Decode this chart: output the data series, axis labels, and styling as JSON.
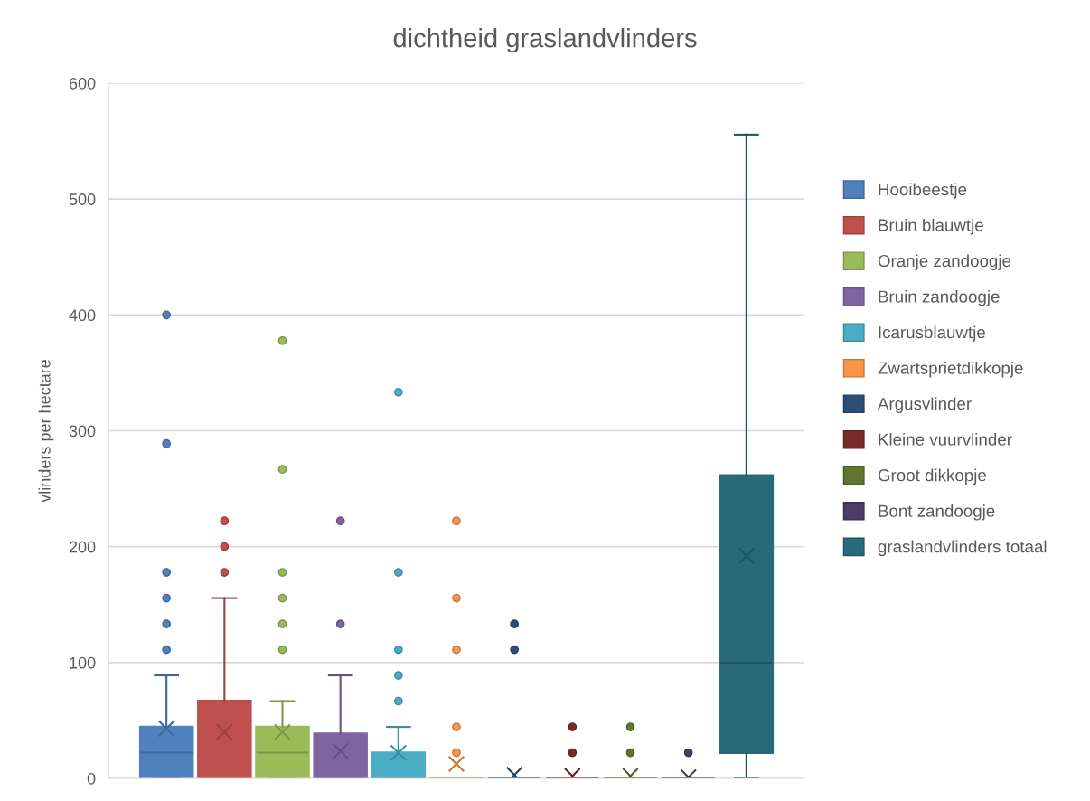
{
  "chart_data": {
    "type": "box",
    "title": "dichtheid graslandvlinders",
    "ylabel": "vlinders per hectare",
    "categories": [
      null
    ],
    "ylim": [
      0,
      600
    ],
    "yticks": [
      0,
      100,
      200,
      300,
      400,
      500,
      600
    ],
    "grid": "y",
    "legend": "right",
    "series": [
      {
        "name": "Hooibeestje",
        "color": "#4f81bd",
        "boxes": [
          {
            "low": 0,
            "q1": 0,
            "median": 22.2,
            "q3": 44.4,
            "high": 88.9,
            "mean": 43,
            "outliers": [
              111.1,
              133.3,
              155.6,
              177.8,
              288.9,
              400
            ]
          }
        ]
      },
      {
        "name": "Bruin blauwtje",
        "color": "#c0504d",
        "boxes": [
          {
            "low": 0,
            "q1": 0,
            "median": 0,
            "q3": 66.7,
            "high": 155.6,
            "mean": 40,
            "outliers": [
              177.8,
              200,
              222.2
            ]
          }
        ]
      },
      {
        "name": "Oranje zandoogje",
        "color": "#9bbb59",
        "boxes": [
          {
            "low": 0,
            "q1": 0,
            "median": 22.2,
            "q3": 44.4,
            "high": 66.7,
            "mean": 40,
            "outliers": [
              111.1,
              133.3,
              155.6,
              177.8,
              266.7,
              377.8
            ]
          }
        ]
      },
      {
        "name": "Bruin zandoogje",
        "color": "#8064a2",
        "boxes": [
          {
            "low": 0,
            "q1": 0,
            "median": 0,
            "q3": 38.5,
            "high": 88.9,
            "mean": 23.5,
            "outliers": [
              133.3,
              222.2
            ]
          }
        ]
      },
      {
        "name": "Icarusblauwtje",
        "color": "#4bacc6",
        "boxes": [
          {
            "low": 0,
            "q1": 0,
            "median": 0,
            "q3": 22.2,
            "high": 44.4,
            "mean": 22,
            "outliers": [
              66.7,
              88.9,
              111.1,
              177.8,
              333.3
            ]
          }
        ]
      },
      {
        "name": "Zwartsprietdikkopje",
        "color": "#f79646",
        "boxes": [
          {
            "low": 0,
            "q1": 0,
            "median": 0,
            "q3": 0,
            "high": 0,
            "mean": 12.5,
            "outliers": [
              22.2,
              44.4,
              111.1,
              155.6,
              222.2
            ]
          }
        ]
      },
      {
        "name": "Argusvlinder",
        "color": "#2c4d75",
        "boxes": [
          {
            "low": 0,
            "q1": 0,
            "median": 0,
            "q3": 0,
            "high": 0,
            "mean": 3,
            "outliers": [
              111.1,
              133.3
            ]
          }
        ]
      },
      {
        "name": "Kleine vuurvlinder",
        "color": "#772c2a",
        "boxes": [
          {
            "low": 0,
            "q1": 0,
            "median": 0,
            "q3": 0,
            "high": 0,
            "mean": 2,
            "outliers": [
              22.2,
              44.4
            ]
          }
        ]
      },
      {
        "name": "Groot dikkopje",
        "color": "#5f7530",
        "boxes": [
          {
            "low": 0,
            "q1": 0,
            "median": 0,
            "q3": 0,
            "high": 0,
            "mean": 2,
            "outliers": [
              22.2,
              44.4
            ]
          }
        ]
      },
      {
        "name": "Bont zandoogje",
        "color": "#4d3b62",
        "boxes": [
          {
            "low": 0,
            "q1": 0,
            "median": 0,
            "q3": 0,
            "high": 0,
            "mean": 1,
            "outliers": [
              22.2
            ]
          }
        ]
      },
      {
        "name": "graslandvlinders totaal",
        "color": "#276a7c",
        "boxes": [
          {
            "low": 0,
            "q1": 22.2,
            "median": 100,
            "q3": 261.4,
            "high": 555.6,
            "mean": 192
          }
        ]
      }
    ]
  }
}
